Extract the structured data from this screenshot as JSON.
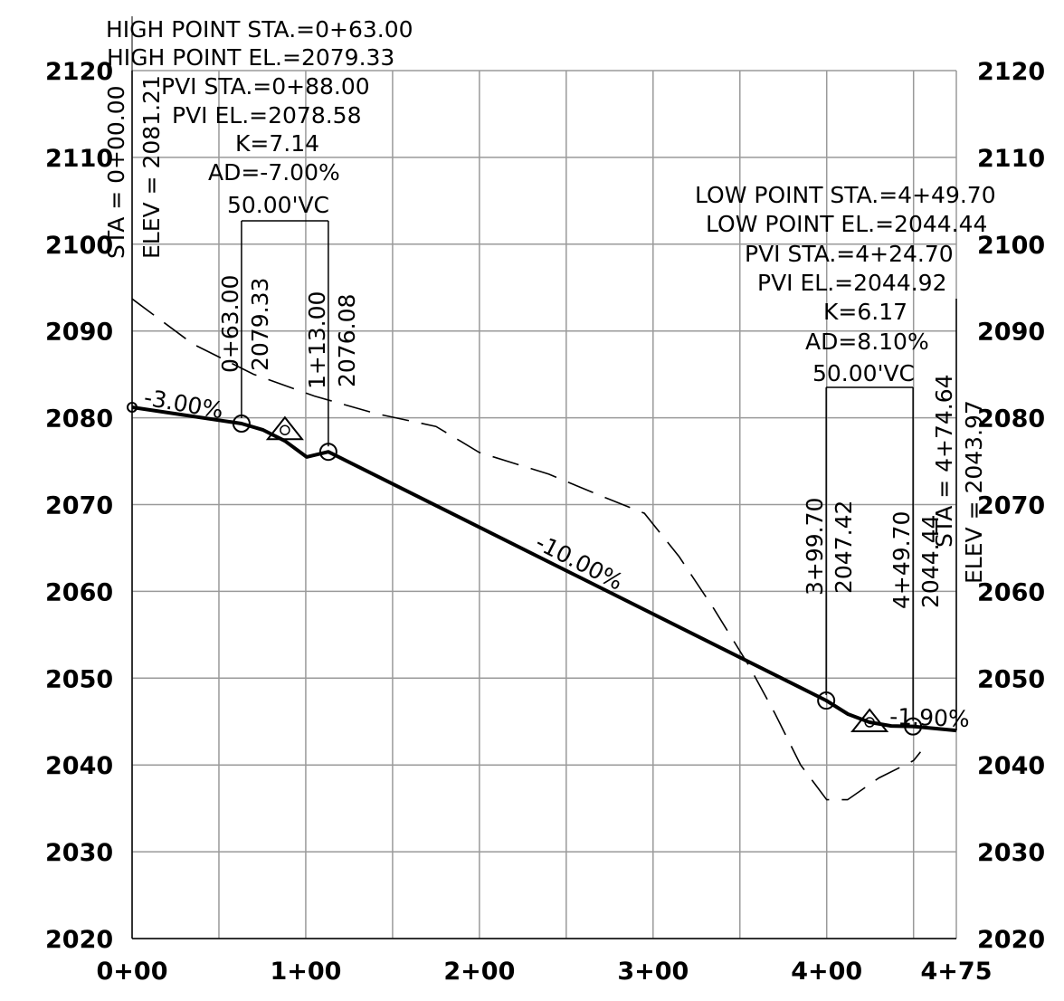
{
  "y_axis_left_labels": [
    "2120",
    "2110",
    "2100",
    "2090",
    "2080",
    "2070",
    "2060",
    "2050",
    "2040",
    "2030",
    "2020"
  ],
  "y_axis_right_labels": [
    "2120",
    "2110",
    "2100",
    "2090",
    "2080",
    "2070",
    "2060",
    "2050",
    "2040",
    "2030",
    "2020"
  ],
  "x_axis_labels": [
    "0+00",
    "1+00",
    "2+00",
    "3+00",
    "4+00",
    "4+75"
  ],
  "start_station": {
    "sta_label": "STA = 0+00.00",
    "elev_label": "ELEV = 2081.21"
  },
  "end_station": {
    "sta_label": "STA = 4+74.64",
    "elev_label": "ELEV = 2043.97"
  },
  "vertical_curves": [
    {
      "id": "crest",
      "notes": [
        "HIGH POINT STA.=0+63.00",
        "HIGH POINT EL.=2079.33",
        "PVI STA.=0+88.00",
        "PVI EL.=2078.58",
        "K=7.14",
        "AD=-7.00%",
        "50.00'VC"
      ],
      "bvc": {
        "sta": "0+63.00",
        "elev": "2079.33"
      },
      "evc": {
        "sta": "1+13.00",
        "elev": "2076.08"
      }
    },
    {
      "id": "sag",
      "notes": [
        "LOW POINT STA.=4+49.70",
        "LOW POINT EL.=2044.44",
        "PVI STA.=4+24.70",
        "PVI EL.=2044.92",
        "K=6.17",
        "AD=8.10%",
        "50.00'VC"
      ],
      "bvc": {
        "sta": "3+99.70",
        "elev": "2047.42"
      },
      "evc": {
        "sta": "4+49.70",
        "elev": "2044.44"
      }
    }
  ],
  "grade_labels": [
    "-3.00%",
    "-10.00%",
    "-1.90%"
  ],
  "chart_data": {
    "type": "line",
    "x_unit": "station (ft)",
    "y_unit": "elevation (ft)",
    "xlim": [
      0,
      474.64
    ],
    "ylim": [
      2020,
      2120
    ],
    "x_ticks": [
      0,
      100,
      200,
      300,
      400,
      474.64
    ],
    "y_ticks": [
      2020,
      2030,
      2040,
      2050,
      2060,
      2070,
      2080,
      2090,
      2100,
      2110,
      2120
    ],
    "grid": true,
    "series": [
      {
        "style": "solid-heavy",
        "points": [
          [
            0,
            2081.21
          ],
          [
            63,
            2079.33
          ],
          [
            75.5,
            2078.59
          ],
          [
            88,
            2077.33
          ],
          [
            100.5,
            2075.49
          ],
          [
            113,
            2076.08
          ],
          [
            399.7,
            2047.42
          ],
          [
            412.2,
            2045.86
          ],
          [
            424.7,
            2044.92
          ],
          [
            437.2,
            2044.49
          ],
          [
            449.7,
            2044.44
          ],
          [
            474.64,
            2043.97
          ]
        ]
      },
      {
        "style": "dashed",
        "points": [
          [
            0,
            2093.7
          ],
          [
            35,
            2088.5
          ],
          [
            70,
            2085
          ],
          [
            105,
            2082.5
          ],
          [
            140,
            2080.5
          ],
          [
            175,
            2079
          ],
          [
            200,
            2076
          ],
          [
            240,
            2073.5
          ],
          [
            270,
            2071
          ],
          [
            295,
            2069
          ],
          [
            315,
            2064
          ],
          [
            335,
            2058
          ],
          [
            355,
            2051.5
          ],
          [
            370,
            2046
          ],
          [
            385,
            2040
          ],
          [
            400,
            2036
          ],
          [
            412,
            2036
          ],
          [
            430,
            2038.5
          ],
          [
            450,
            2040.5
          ],
          [
            454,
            2041.5
          ]
        ]
      }
    ],
    "pvi_points": [
      [
        88,
        2078.58
      ],
      [
        424.7,
        2044.92
      ]
    ],
    "curve_points": [
      [
        0,
        2081.21
      ],
      [
        63,
        2079.33
      ],
      [
        113,
        2076.08
      ],
      [
        399.7,
        2047.42
      ],
      [
        449.7,
        2044.44
      ]
    ],
    "grades": [
      {
        "label": "-3.00%",
        "at": [
          0,
          2081.21
        ]
      },
      {
        "label": "-10.00%",
        "at": [
          265,
          2061
        ]
      },
      {
        "label": "-1.90%",
        "at": [
          460,
          2043
        ]
      }
    ]
  }
}
